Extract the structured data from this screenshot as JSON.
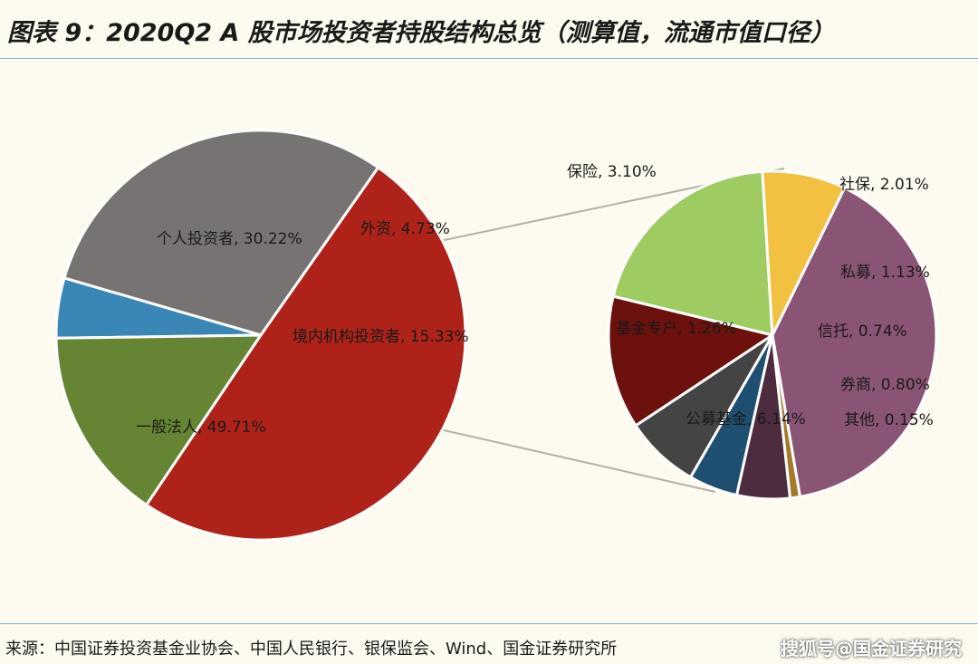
{
  "title": "图表 9：2020Q2 A 股市场投资者持股结构总览（测算值，流通市值口径）",
  "source": "来源：中国证券投资基金业协会、中国人民银行、银保监会、Wind、国金证券研究所",
  "watermark": "搜狐号@国金证券研究",
  "chart_data": [
    {
      "type": "pie",
      "slices": [
        {
          "label": "个人投资者",
          "value": 30.22,
          "display": "30.22%",
          "color": "#777372"
        },
        {
          "label": "外资",
          "value": 4.73,
          "display": "4.73%",
          "color": "#3a86b6"
        },
        {
          "label": "境内机构投资者",
          "value": 15.33,
          "display": "15.33%",
          "color": "#668534"
        },
        {
          "label": "一般法人",
          "value": 49.71,
          "display": "49.71%",
          "color": "#ae2219"
        }
      ]
    },
    {
      "type": "pie",
      "slices": [
        {
          "label": "保险",
          "value": 3.1,
          "display": "3.10%",
          "color": "#9fcb63"
        },
        {
          "label": "社保",
          "value": 2.01,
          "display": "2.01%",
          "color": "#6c110d"
        },
        {
          "label": "私募",
          "value": 1.13,
          "display": "1.13%",
          "color": "#444444"
        },
        {
          "label": "信托",
          "value": 0.74,
          "display": "0.74%",
          "color": "#1f4f70"
        },
        {
          "label": "券商",
          "value": 0.8,
          "display": "0.80%",
          "color": "#4d2c3f"
        },
        {
          "label": "其他",
          "value": 0.15,
          "display": "0.15%",
          "color": "#a57b2b"
        },
        {
          "label": "公募基金",
          "value": 6.14,
          "display": "6.14%",
          "color": "#8a5474"
        },
        {
          "label": "基金专户",
          "value": 1.26,
          "display": "1.26%",
          "color": "#f3c141"
        }
      ]
    }
  ]
}
